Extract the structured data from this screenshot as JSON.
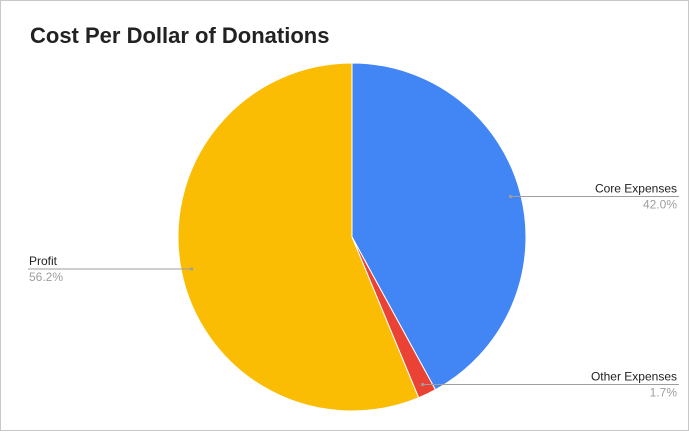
{
  "chart_data": {
    "type": "pie",
    "title": "Cost Per Dollar of Donations",
    "slices": [
      {
        "label": "Core Expenses",
        "value": 42.0,
        "value_label": "42.0%",
        "color": "#4285F4",
        "label_side": "right"
      },
      {
        "label": "Other Expenses",
        "value": 1.7,
        "value_label": "1.7%",
        "color": "#EA4335",
        "label_side": "right"
      },
      {
        "label": "Profit",
        "value": 56.2,
        "value_label": "56.2%",
        "color": "#FBBC04",
        "label_side": "left"
      }
    ],
    "start_angle": "12 o'clock",
    "direction": "clockwise",
    "legend": "none"
  }
}
